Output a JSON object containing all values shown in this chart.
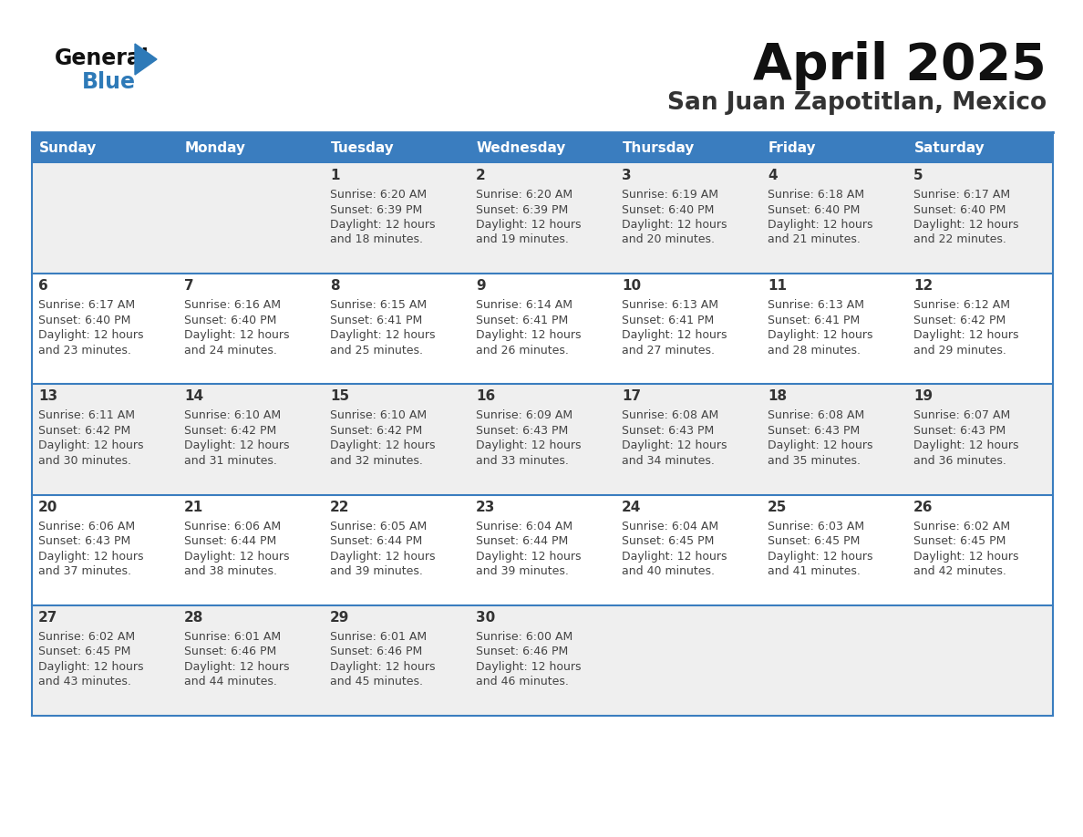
{
  "title": "April 2025",
  "subtitle": "San Juan Zapotitlan, Mexico",
  "header_bg": "#3a7dbf",
  "header_text": "#ffffff",
  "day_headers": [
    "Sunday",
    "Monday",
    "Tuesday",
    "Wednesday",
    "Thursday",
    "Friday",
    "Saturday"
  ],
  "row_bg_odd": "#efefef",
  "row_bg_even": "#ffffff",
  "grid_line_color": "#3a7dbf",
  "number_color": "#333333",
  "text_color": "#444444",
  "title_color": "#111111",
  "subtitle_color": "#333333",
  "logo_black": "#111111",
  "logo_blue": "#2e7ab8",
  "calendar": [
    [
      {
        "day": null,
        "sunrise": null,
        "sunset": null,
        "daylight_min": null
      },
      {
        "day": null,
        "sunrise": null,
        "sunset": null,
        "daylight_min": null
      },
      {
        "day": 1,
        "sunrise": "6:20 AM",
        "sunset": "6:39 PM",
        "daylight_min": 18
      },
      {
        "day": 2,
        "sunrise": "6:20 AM",
        "sunset": "6:39 PM",
        "daylight_min": 19
      },
      {
        "day": 3,
        "sunrise": "6:19 AM",
        "sunset": "6:40 PM",
        "daylight_min": 20
      },
      {
        "day": 4,
        "sunrise": "6:18 AM",
        "sunset": "6:40 PM",
        "daylight_min": 21
      },
      {
        "day": 5,
        "sunrise": "6:17 AM",
        "sunset": "6:40 PM",
        "daylight_min": 22
      }
    ],
    [
      {
        "day": 6,
        "sunrise": "6:17 AM",
        "sunset": "6:40 PM",
        "daylight_min": 23
      },
      {
        "day": 7,
        "sunrise": "6:16 AM",
        "sunset": "6:40 PM",
        "daylight_min": 24
      },
      {
        "day": 8,
        "sunrise": "6:15 AM",
        "sunset": "6:41 PM",
        "daylight_min": 25
      },
      {
        "day": 9,
        "sunrise": "6:14 AM",
        "sunset": "6:41 PM",
        "daylight_min": 26
      },
      {
        "day": 10,
        "sunrise": "6:13 AM",
        "sunset": "6:41 PM",
        "daylight_min": 27
      },
      {
        "day": 11,
        "sunrise": "6:13 AM",
        "sunset": "6:41 PM",
        "daylight_min": 28
      },
      {
        "day": 12,
        "sunrise": "6:12 AM",
        "sunset": "6:42 PM",
        "daylight_min": 29
      }
    ],
    [
      {
        "day": 13,
        "sunrise": "6:11 AM",
        "sunset": "6:42 PM",
        "daylight_min": 30
      },
      {
        "day": 14,
        "sunrise": "6:10 AM",
        "sunset": "6:42 PM",
        "daylight_min": 31
      },
      {
        "day": 15,
        "sunrise": "6:10 AM",
        "sunset": "6:42 PM",
        "daylight_min": 32
      },
      {
        "day": 16,
        "sunrise": "6:09 AM",
        "sunset": "6:43 PM",
        "daylight_min": 33
      },
      {
        "day": 17,
        "sunrise": "6:08 AM",
        "sunset": "6:43 PM",
        "daylight_min": 34
      },
      {
        "day": 18,
        "sunrise": "6:08 AM",
        "sunset": "6:43 PM",
        "daylight_min": 35
      },
      {
        "day": 19,
        "sunrise": "6:07 AM",
        "sunset": "6:43 PM",
        "daylight_min": 36
      }
    ],
    [
      {
        "day": 20,
        "sunrise": "6:06 AM",
        "sunset": "6:43 PM",
        "daylight_min": 37
      },
      {
        "day": 21,
        "sunrise": "6:06 AM",
        "sunset": "6:44 PM",
        "daylight_min": 38
      },
      {
        "day": 22,
        "sunrise": "6:05 AM",
        "sunset": "6:44 PM",
        "daylight_min": 39
      },
      {
        "day": 23,
        "sunrise": "6:04 AM",
        "sunset": "6:44 PM",
        "daylight_min": 39
      },
      {
        "day": 24,
        "sunrise": "6:04 AM",
        "sunset": "6:45 PM",
        "daylight_min": 40
      },
      {
        "day": 25,
        "sunrise": "6:03 AM",
        "sunset": "6:45 PM",
        "daylight_min": 41
      },
      {
        "day": 26,
        "sunrise": "6:02 AM",
        "sunset": "6:45 PM",
        "daylight_min": 42
      }
    ],
    [
      {
        "day": 27,
        "sunrise": "6:02 AM",
        "sunset": "6:45 PM",
        "daylight_min": 43
      },
      {
        "day": 28,
        "sunrise": "6:01 AM",
        "sunset": "6:46 PM",
        "daylight_min": 44
      },
      {
        "day": 29,
        "sunrise": "6:01 AM",
        "sunset": "6:46 PM",
        "daylight_min": 45
      },
      {
        "day": 30,
        "sunrise": "6:00 AM",
        "sunset": "6:46 PM",
        "daylight_min": 46
      },
      {
        "day": null,
        "sunrise": null,
        "sunset": null,
        "daylight_min": null
      },
      {
        "day": null,
        "sunrise": null,
        "sunset": null,
        "daylight_min": null
      },
      {
        "day": null,
        "sunrise": null,
        "sunset": null,
        "daylight_min": null
      }
    ]
  ]
}
